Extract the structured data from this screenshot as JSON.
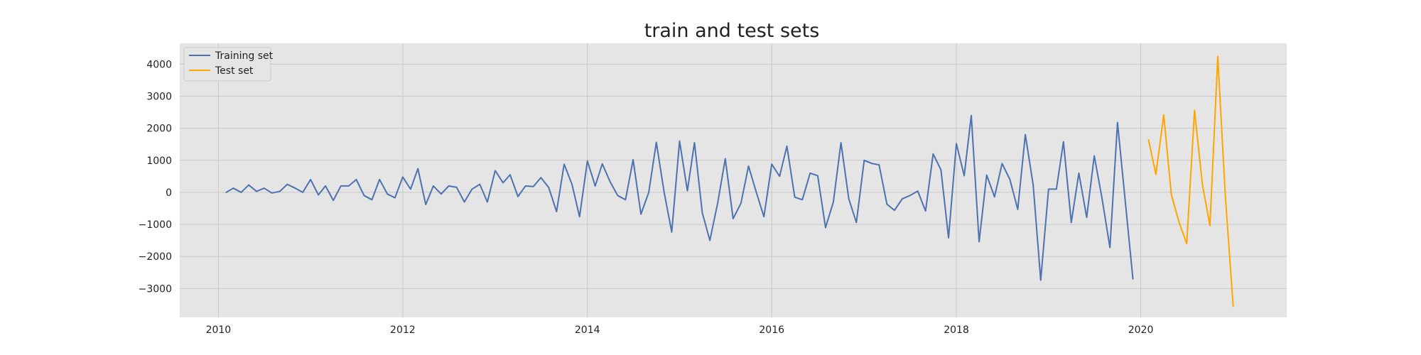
{
  "chart_data": {
    "type": "line",
    "title": "train and test sets",
    "xlabel": "",
    "ylabel": "",
    "x_axis_type": "date",
    "xlim": [
      "2009-08-01",
      "2021-08-01"
    ],
    "ylim": [
      -3900,
      4650
    ],
    "x_ticks": [
      {
        "value": "2010-01-01",
        "label": "2010"
      },
      {
        "value": "2012-01-01",
        "label": "2012"
      },
      {
        "value": "2014-01-01",
        "label": "2014"
      },
      {
        "value": "2016-01-01",
        "label": "2016"
      },
      {
        "value": "2018-01-01",
        "label": "2018"
      },
      {
        "value": "2020-01-01",
        "label": "2020"
      }
    ],
    "y_ticks": [
      {
        "value": 4000,
        "label": "4000"
      },
      {
        "value": 3000,
        "label": "3000"
      },
      {
        "value": 2000,
        "label": "2000"
      },
      {
        "value": 1000,
        "label": "1000"
      },
      {
        "value": 0,
        "label": "0"
      },
      {
        "value": -1000,
        "label": "−1000"
      },
      {
        "value": -2000,
        "label": "−2000"
      },
      {
        "value": -3000,
        "label": "−3000"
      }
    ],
    "grid": true,
    "legend_position": "top-left",
    "background_color": "#e5e5e5",
    "grid_color": "#c8c8c8",
    "series": [
      {
        "name": "Training set",
        "color": "#4c72b0",
        "start": "2010-02-01",
        "frequency": "monthly",
        "values": [
          0,
          130,
          0,
          230,
          30,
          130,
          -20,
          30,
          250,
          130,
          0,
          400,
          -80,
          200,
          -250,
          200,
          200,
          400,
          -100,
          -230,
          400,
          -50,
          -170,
          480,
          100,
          740,
          -380,
          200,
          -50,
          200,
          160,
          -300,
          100,
          250,
          -300,
          680,
          300,
          550,
          -130,
          200,
          180,
          460,
          150,
          -600,
          880,
          250,
          -760,
          980,
          200,
          890,
          330,
          -100,
          -230,
          1020,
          -680,
          0,
          1560,
          0,
          -1240,
          1600,
          50,
          1550,
          -640,
          -1500,
          -330,
          1050,
          -820,
          -340,
          820,
          0,
          -760,
          880,
          500,
          1440,
          -150,
          -230,
          600,
          520,
          -1100,
          -300,
          1550,
          -200,
          -940,
          1000,
          900,
          860,
          -370,
          -560,
          -200,
          -100,
          40,
          -580,
          1200,
          700,
          -1420,
          1520,
          520,
          2400,
          -1540,
          540,
          -140,
          900,
          400,
          -530,
          1800,
          240,
          -2740,
          100,
          100,
          1580,
          -940,
          600,
          -780,
          1140,
          -200,
          -1720,
          2180,
          -300,
          -2700
        ]
      },
      {
        "name": "Test set",
        "color": "#ffa500",
        "start": "2020-02-01",
        "frequency": "monthly",
        "values": [
          1640,
          560,
          2420,
          -60,
          -940,
          -1600,
          2560,
          250,
          -1040,
          4240,
          -120,
          -3550
        ]
      }
    ]
  }
}
